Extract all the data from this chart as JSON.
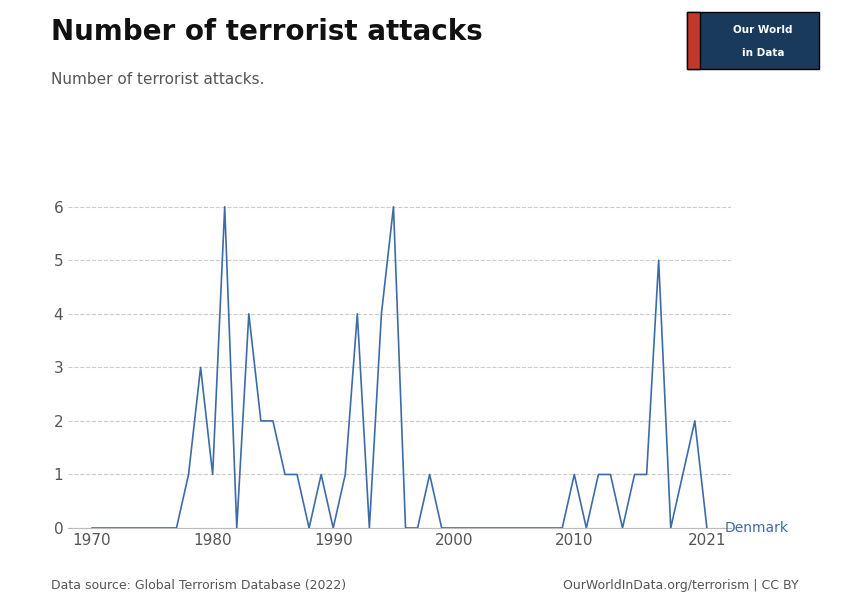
{
  "title": "Number of terrorist attacks",
  "subtitle": "Number of terrorist attacks.",
  "ylabel": "",
  "xlabel": "",
  "line_color": "#3d6ba8",
  "background_color": "#ffffff",
  "label": "Denmark",
  "label_color": "#3d6ba8",
  "data_source": "Data source: Global Terrorism Database (2022)",
  "copyright": "OurWorldInData.org/terrorism | CC BY",
  "logo_text1": "Our World",
  "logo_text2": "in Data",
  "logo_bg": "#1a3a5c",
  "logo_red": "#c0392b",
  "years": [
    1970,
    1971,
    1972,
    1973,
    1974,
    1975,
    1976,
    1977,
    1978,
    1979,
    1980,
    1981,
    1982,
    1983,
    1984,
    1985,
    1986,
    1987,
    1988,
    1989,
    1990,
    1991,
    1992,
    1993,
    1994,
    1995,
    1996,
    1997,
    1998,
    1999,
    2000,
    2001,
    2002,
    2003,
    2004,
    2005,
    2006,
    2007,
    2008,
    2009,
    2010,
    2011,
    2012,
    2013,
    2014,
    2015,
    2016,
    2017,
    2018,
    2019,
    2020,
    2021
  ],
  "values": [
    0,
    0,
    0,
    0,
    0,
    0,
    0,
    0,
    1,
    3,
    1,
    6,
    0,
    4,
    2,
    2,
    1,
    1,
    0,
    1,
    0,
    1,
    4,
    0,
    4,
    6,
    0,
    0,
    1,
    0,
    0,
    0,
    0,
    0,
    0,
    0,
    0,
    0,
    0,
    0,
    1,
    0,
    1,
    1,
    0,
    1,
    1,
    5,
    0,
    1,
    2,
    0
  ],
  "ylim": [
    0,
    6.5
  ],
  "yticks": [
    0,
    1,
    2,
    3,
    4,
    5,
    6
  ],
  "xticks": [
    1970,
    1980,
    1990,
    2000,
    2010,
    2021
  ],
  "title_fontsize": 20,
  "subtitle_fontsize": 11,
  "tick_fontsize": 11,
  "footer_fontsize": 9
}
